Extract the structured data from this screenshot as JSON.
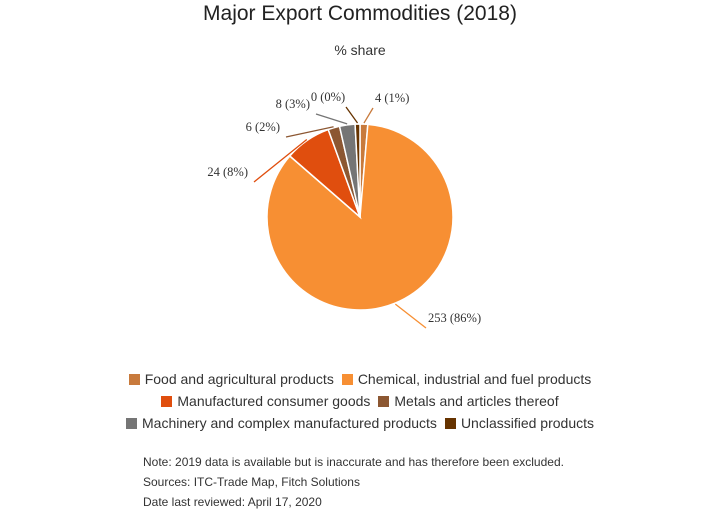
{
  "chart_data": {
    "type": "pie",
    "title": "Major Export Commodities (2018)",
    "subtitle": "% share",
    "slices": [
      {
        "name": "Food and agricultural products",
        "value": 4,
        "pct": 1,
        "label": "4 (1%)",
        "color": "#C87A3C"
      },
      {
        "name": "Chemical, industrial and fuel products",
        "value": 253,
        "pct": 86,
        "label": "253 (86%)",
        "color": "#F78F33"
      },
      {
        "name": "Manufactured consumer goods",
        "value": 24,
        "pct": 8,
        "label": "24 (8%)",
        "color": "#E04E0E"
      },
      {
        "name": "Metals and articles thereof",
        "value": 6,
        "pct": 2,
        "label": "6 (2%)",
        "color": "#8C5732"
      },
      {
        "name": "Machinery and complex manufactured products",
        "value": 8,
        "pct": 3,
        "label": "8 (3%)",
        "color": "#757575"
      },
      {
        "name": "Unclassified products",
        "value": 0,
        "pct": 0,
        "label": "0 (0%)",
        "color": "#663300"
      }
    ],
    "legend_rows": [
      [
        0,
        1
      ],
      [
        2,
        3
      ],
      [
        4,
        5
      ]
    ],
    "legend_position": "bottom"
  },
  "notes": [
    "Note: 2019 data is available but is inaccurate and has therefore been excluded.",
    "Sources: ITC-Trade Map, Fitch Solutions",
    "Date last reviewed: April 17, 2020"
  ]
}
